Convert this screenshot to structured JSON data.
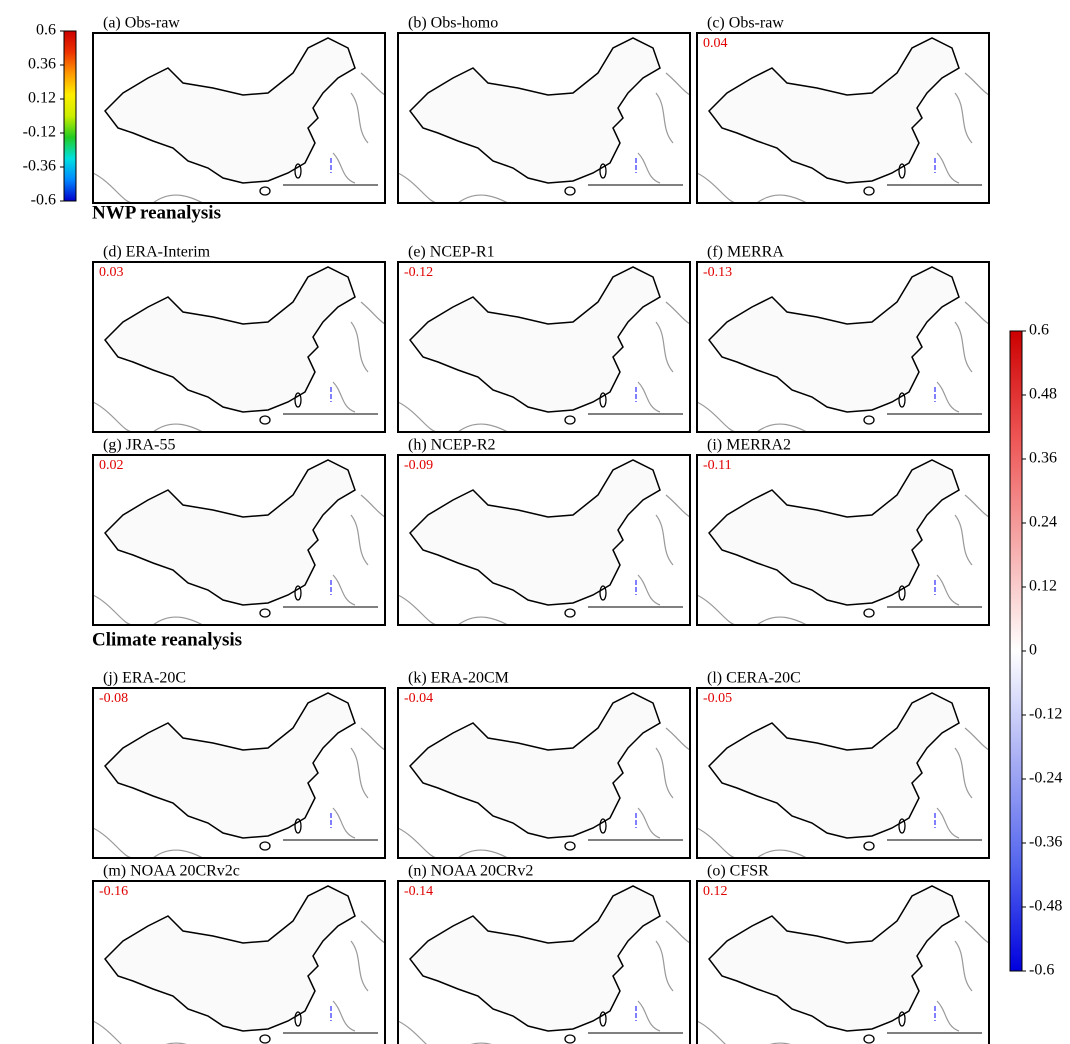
{
  "sections": [
    "NWP reanalysis",
    "Climate reanalysis"
  ],
  "colorbars": [
    {
      "lim": [
        -0.6,
        0.6
      ],
      "ticks": [
        0.6,
        0.36,
        0.12,
        -0.12,
        -0.36,
        -0.6
      ],
      "colors": [
        "#0000cc",
        "#0088ff",
        "#00e0e0",
        "#22cc22",
        "#ccee00",
        "#ffee00",
        "#ff9900",
        "#ee3300",
        "#cc0000"
      ]
    },
    {
      "lim": [
        -0.6,
        0.6
      ],
      "ticks": [
        0.6,
        0.48,
        0.36,
        0.24,
        0.12,
        0,
        -0.12,
        -0.24,
        -0.36,
        -0.48,
        -0.6
      ],
      "colors": [
        "#0000dd",
        "#5566ee",
        "#aab0f4",
        "#ffffff",
        "#f6aaaa",
        "#ee5555",
        "#cc0000"
      ]
    }
  ],
  "panels": [
    {
      "label": "(a) Obs-raw"
    },
    {
      "label": "(b) Obs-homo"
    },
    {
      "label": "(c) Obs-raw",
      "value": "0.04"
    },
    {
      "label": "(d) ERA-Interim",
      "value": "0.03"
    },
    {
      "label": "(e) NCEP-R1",
      "value": "-0.12"
    },
    {
      "label": "(f) MERRA",
      "value": "-0.13"
    },
    {
      "label": "(g) JRA-55",
      "value": "0.02"
    },
    {
      "label": "(h) NCEP-R2",
      "value": "-0.09"
    },
    {
      "label": "(i) MERRA2",
      "value": "-0.11"
    },
    {
      "label": "(j) ERA-20C",
      "value": "-0.08"
    },
    {
      "label": "(k) ERA-20CM",
      "value": "-0.04"
    },
    {
      "label": "(l) CERA-20C",
      "value": "-0.05"
    },
    {
      "label": "(m) NOAA 20CRv2c",
      "value": "-0.16"
    },
    {
      "label": "(n) NOAA 20CRv2",
      "value": "-0.14"
    },
    {
      "label": "(o) CFSR",
      "value": "0.12"
    }
  ]
}
